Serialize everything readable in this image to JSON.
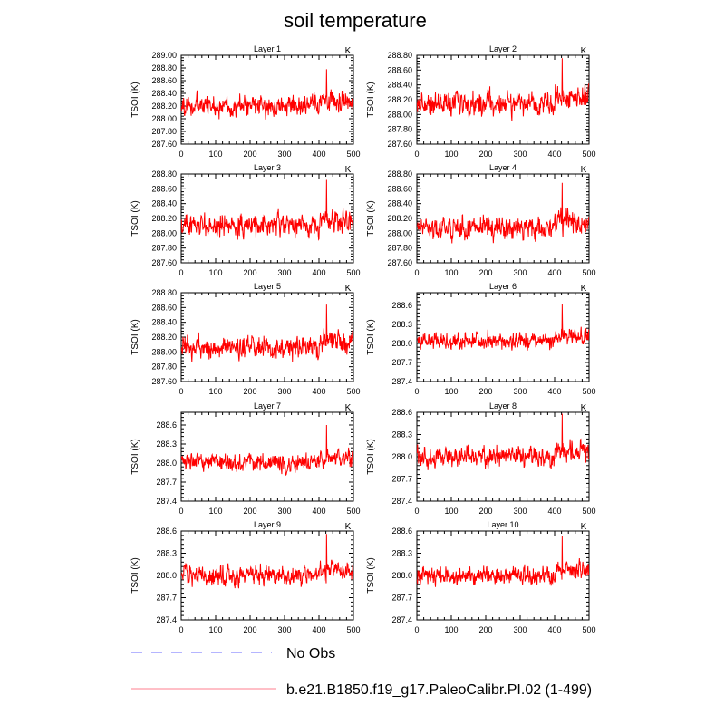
{
  "title": "soil temperature",
  "colors": {
    "model": "#ff0000",
    "obs": "#6b6bff",
    "legend_model": "#ff7f8f",
    "axis": "#000000"
  },
  "legend": {
    "obs_label": "No Obs",
    "model_label": "b.e21.B1850.f19_g17.PaleoCalibr.PI.02 (1-499)"
  },
  "chart_data": [
    {
      "type": "line",
      "title": "Layer 1",
      "units": "K",
      "ylabel": "TSOI  (K)",
      "xlim": [
        0,
        500
      ],
      "ylim": [
        287.6,
        289.0
      ],
      "xticks": [
        "0",
        "100",
        "200",
        "300",
        "400",
        "500"
      ],
      "yticks": [
        "287.60",
        "287.80",
        "288.00",
        "288.20",
        "288.40",
        "288.60",
        "288.80",
        "289.00"
      ],
      "series": [
        {
          "name": "b.e21.B1850.f19_g17.PaleoCalibr.PI.02 (1-499)",
          "x_range": [
            1,
            499
          ],
          "mean": 288.2,
          "sd": 0.15,
          "spike": {
            "x": 422,
            "y": 288.78
          }
        }
      ]
    },
    {
      "type": "line",
      "title": "Layer 2",
      "units": "K",
      "ylabel": "TSOI  (K)",
      "xlim": [
        0,
        500
      ],
      "ylim": [
        287.6,
        288.8
      ],
      "xticks": [
        "0",
        "100",
        "200",
        "300",
        "400",
        "500"
      ],
      "yticks": [
        "287.60",
        "287.80",
        "288.00",
        "288.20",
        "288.40",
        "288.60",
        "288.80"
      ],
      "series": [
        {
          "name": "b.e21.B1850.f19_g17.PaleoCalibr.PI.02 (1-499)",
          "x_range": [
            1,
            499
          ],
          "mean": 288.15,
          "sd": 0.14,
          "spike": {
            "x": 422,
            "y": 288.76
          }
        }
      ]
    },
    {
      "type": "line",
      "title": "Layer 3",
      "units": "K",
      "ylabel": "TSOI  (K)",
      "xlim": [
        0,
        500
      ],
      "ylim": [
        287.6,
        288.8
      ],
      "xticks": [
        "0",
        "100",
        "200",
        "300",
        "400",
        "500"
      ],
      "yticks": [
        "287.60",
        "287.80",
        "288.00",
        "288.20",
        "288.40",
        "288.60",
        "288.80"
      ],
      "series": [
        {
          "name": "b.e21.B1850.f19_g17.PaleoCalibr.PI.02 (1-499)",
          "x_range": [
            1,
            499
          ],
          "mean": 288.1,
          "sd": 0.13,
          "spike": {
            "x": 422,
            "y": 288.72
          }
        }
      ]
    },
    {
      "type": "line",
      "title": "Layer 4",
      "units": "K",
      "ylabel": "TSOI  (K)",
      "xlim": [
        0,
        500
      ],
      "ylim": [
        287.6,
        288.8
      ],
      "xticks": [
        "0",
        "100",
        "200",
        "300",
        "400",
        "500"
      ],
      "yticks": [
        "287.60",
        "287.80",
        "288.00",
        "288.20",
        "288.40",
        "288.60",
        "288.80"
      ],
      "series": [
        {
          "name": "b.e21.B1850.f19_g17.PaleoCalibr.PI.02 (1-499)",
          "x_range": [
            1,
            499
          ],
          "mean": 288.07,
          "sd": 0.13,
          "spike": {
            "x": 422,
            "y": 288.68
          }
        }
      ]
    },
    {
      "type": "line",
      "title": "Layer 5",
      "units": "K",
      "ylabel": "TSOI  (K)",
      "xlim": [
        0,
        500
      ],
      "ylim": [
        287.6,
        288.8
      ],
      "xticks": [
        "0",
        "100",
        "200",
        "300",
        "400",
        "500"
      ],
      "yticks": [
        "287.60",
        "287.80",
        "288.00",
        "288.20",
        "288.40",
        "288.60",
        "288.80"
      ],
      "series": [
        {
          "name": "b.e21.B1850.f19_g17.PaleoCalibr.PI.02 (1-499)",
          "x_range": [
            1,
            499
          ],
          "mean": 288.05,
          "sd": 0.13,
          "spike": {
            "x": 422,
            "y": 288.64
          }
        }
      ]
    },
    {
      "type": "line",
      "title": "Layer 6",
      "units": "K",
      "ylabel": "TSOI  (K)",
      "xlim": [
        0,
        500
      ],
      "ylim": [
        287.4,
        288.8
      ],
      "xticks": [
        "0",
        "100",
        "200",
        "300",
        "400",
        "500"
      ],
      "yticks": [
        "287.4",
        "287.7",
        "288.0",
        "288.3",
        "288.6"
      ],
      "series": [
        {
          "name": "b.e21.B1850.f19_g17.PaleoCalibr.PI.02 (1-499)",
          "x_range": [
            1,
            499
          ],
          "mean": 288.03,
          "sd": 0.12,
          "spike": {
            "x": 422,
            "y": 288.62
          }
        }
      ]
    },
    {
      "type": "line",
      "title": "Layer 7",
      "units": "K",
      "ylabel": "TSOI  (K)",
      "xlim": [
        0,
        500
      ],
      "ylim": [
        287.4,
        288.8
      ],
      "xticks": [
        "0",
        "100",
        "200",
        "300",
        "400",
        "500"
      ],
      "yticks": [
        "287.4",
        "287.7",
        "288.0",
        "288.3",
        "288.6"
      ],
      "series": [
        {
          "name": "b.e21.B1850.f19_g17.PaleoCalibr.PI.02 (1-499)",
          "x_range": [
            1,
            499
          ],
          "mean": 288.0,
          "sd": 0.12,
          "spike": {
            "x": 422,
            "y": 288.6
          }
        }
      ]
    },
    {
      "type": "line",
      "title": "Layer 8",
      "units": "K",
      "ylabel": "TSOI  (K)",
      "xlim": [
        0,
        500
      ],
      "ylim": [
        287.4,
        288.6
      ],
      "xticks": [
        "0",
        "100",
        "200",
        "300",
        "400",
        "500"
      ],
      "yticks": [
        "287.4",
        "287.7",
        "288.0",
        "288.3",
        "288.6"
      ],
      "series": [
        {
          "name": "b.e21.B1850.f19_g17.PaleoCalibr.PI.02 (1-499)",
          "x_range": [
            1,
            499
          ],
          "mean": 288.0,
          "sd": 0.12,
          "spike": {
            "x": 422,
            "y": 288.58
          }
        }
      ]
    },
    {
      "type": "line",
      "title": "Layer 9",
      "units": "K",
      "ylabel": "TSOI  (K)",
      "xlim": [
        0,
        500
      ],
      "ylim": [
        287.4,
        288.6
      ],
      "xticks": [
        "0",
        "100",
        "200",
        "300",
        "400",
        "500"
      ],
      "yticks": [
        "287.4",
        "287.7",
        "288.0",
        "288.3",
        "288.6"
      ],
      "series": [
        {
          "name": "b.e21.B1850.f19_g17.PaleoCalibr.PI.02 (1-499)",
          "x_range": [
            1,
            499
          ],
          "mean": 288.0,
          "sd": 0.12,
          "spike": {
            "x": 422,
            "y": 288.56
          }
        }
      ]
    },
    {
      "type": "line",
      "title": "Layer 10",
      "units": "K",
      "ylabel": "TSOI  (K)",
      "xlim": [
        0,
        500
      ],
      "ylim": [
        287.4,
        288.6
      ],
      "xticks": [
        "0",
        "100",
        "200",
        "300",
        "400",
        "500"
      ],
      "yticks": [
        "287.4",
        "287.7",
        "288.0",
        "288.3",
        "288.6"
      ],
      "series": [
        {
          "name": "b.e21.B1850.f19_g17.PaleoCalibr.PI.02 (1-499)",
          "x_range": [
            1,
            499
          ],
          "mean": 288.0,
          "sd": 0.11,
          "spike": {
            "x": 422,
            "y": 288.53
          }
        }
      ]
    }
  ]
}
